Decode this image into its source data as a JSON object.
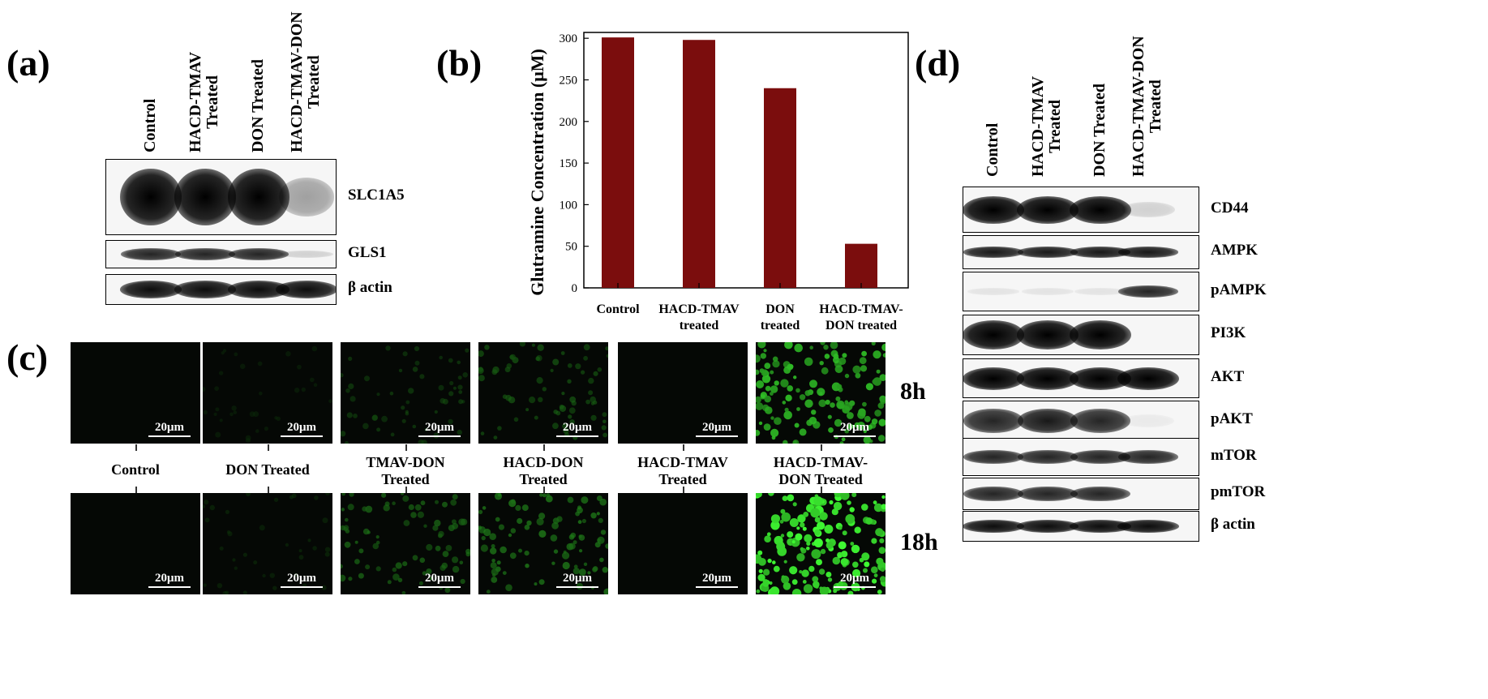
{
  "panel_a": {
    "letter": "(a)",
    "lanes": [
      {
        "lines": [
          "Control"
        ]
      },
      {
        "lines": [
          "HACD-TMAV",
          "Treated"
        ]
      },
      {
        "lines": [
          "DON Treated"
        ]
      },
      {
        "lines": [
          "HACD-TMAV-DON",
          "Treated"
        ]
      }
    ],
    "blots": [
      {
        "name": "SLC1A5",
        "intensity": [
          1.0,
          1.0,
          1.0,
          0.35
        ]
      },
      {
        "name": "GLS1",
        "intensity": [
          0.85,
          0.85,
          0.85,
          0.15
        ]
      },
      {
        "name": "β actin",
        "intensity": [
          0.95,
          0.95,
          0.95,
          0.95
        ]
      }
    ]
  },
  "panel_b": {
    "letter": "(b)"
  },
  "chart_data": {
    "type": "bar",
    "categories": [
      "Control",
      "HACD-TMAV treated",
      "DON treated",
      "HACD-TMAV-DON treated"
    ],
    "category_lines": [
      [
        "Control"
      ],
      [
        "HACD-TMAV",
        "treated"
      ],
      [
        "DON",
        "treated"
      ],
      [
        "HACD-TMAV-",
        "DON treated"
      ]
    ],
    "values": [
      301,
      298,
      240,
      53
    ],
    "ylabel": "Glutramine Concentration (μM)",
    "ylim": [
      0,
      300
    ],
    "yticks": [
      0,
      50,
      100,
      150,
      200,
      250,
      300
    ],
    "bar_color": "#7b0d0d",
    "grid": false
  },
  "panel_c": {
    "letter": "(c)",
    "labels": [
      {
        "lines": [
          "Control"
        ]
      },
      {
        "lines": [
          "DON Treated"
        ]
      },
      {
        "lines": [
          "TMAV-DON",
          "Treated"
        ]
      },
      {
        "lines": [
          "HACD-DON",
          "Treated"
        ]
      },
      {
        "lines": [
          "HACD-TMAV",
          "Treated"
        ]
      },
      {
        "lines": [
          "HACD-TMAV-",
          "DON Treated"
        ]
      }
    ],
    "rows": [
      {
        "time": "8h",
        "green_level": [
          0.0,
          0.02,
          0.18,
          0.28,
          0.0,
          0.75
        ]
      },
      {
        "time": "18h",
        "green_level": [
          0.0,
          0.06,
          0.35,
          0.45,
          0.0,
          1.0
        ]
      }
    ],
    "scale_label": "20μm"
  },
  "panel_d": {
    "letter": "(d)",
    "lanes": [
      {
        "lines": [
          "Control"
        ]
      },
      {
        "lines": [
          "HACD-TMAV",
          "Treated"
        ]
      },
      {
        "lines": [
          "DON Treated"
        ]
      },
      {
        "lines": [
          "HACD-TMAV-DON",
          "Treated"
        ]
      }
    ],
    "blots": [
      {
        "name": "CD44",
        "intensity": [
          1.0,
          1.0,
          1.0,
          0.15
        ]
      },
      {
        "name": "AMPK",
        "intensity": [
          0.9,
          0.9,
          0.9,
          0.9
        ]
      },
      {
        "name": "pAMPK",
        "intensity": [
          0.08,
          0.08,
          0.08,
          0.85
        ]
      },
      {
        "name": "PI3K",
        "intensity": [
          1.0,
          1.0,
          1.0,
          0.0
        ]
      },
      {
        "name": "AKT",
        "intensity": [
          1.0,
          1.0,
          1.0,
          1.0
        ]
      },
      {
        "name": "pAKT",
        "intensity": [
          0.85,
          0.9,
          0.85,
          0.05
        ]
      },
      {
        "name": "mTOR",
        "intensity": [
          0.85,
          0.85,
          0.85,
          0.85
        ]
      },
      {
        "name": "pmTOR",
        "intensity": [
          0.85,
          0.85,
          0.85,
          0.0
        ]
      },
      {
        "name": "β actin",
        "intensity": [
          0.95,
          0.95,
          0.95,
          0.95
        ]
      }
    ]
  }
}
